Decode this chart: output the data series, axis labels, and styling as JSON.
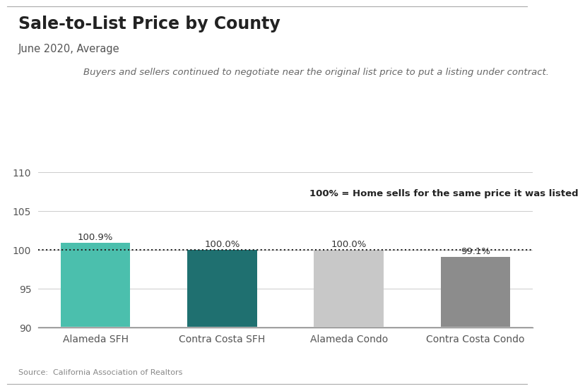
{
  "title": "Sale-to-List Price by County",
  "subtitle": "June 2020, Average",
  "italic_note": "Buyers and sellers continued to negotiate near the original list price to put a listing under contract.",
  "annotation": "100% = Home sells for the same price it was listed",
  "categories": [
    "Alameda SFH",
    "Contra Costa SFH",
    "Alameda Condo",
    "Contra Costa Condo"
  ],
  "values": [
    100.9,
    100.0,
    100.0,
    99.1
  ],
  "bar_colors": [
    "#4bbfad",
    "#1f7070",
    "#c8c8c8",
    "#8c8c8c"
  ],
  "bar_labels": [
    "100.9%",
    "100.0%",
    "100.0%",
    "99.1%"
  ],
  "ylim": [
    90,
    112
  ],
  "yticks": [
    90,
    95,
    100,
    105,
    110
  ],
  "reference_line": 100,
  "source": "Source:  California Association of Realtors",
  "background_color": "#ffffff",
  "grid_color": "#cccccc",
  "title_fontsize": 17,
  "subtitle_fontsize": 10.5,
  "note_fontsize": 9.5,
  "label_fontsize": 9.5,
  "tick_fontsize": 10,
  "annotation_fontsize": 9.5,
  "source_fontsize": 8
}
